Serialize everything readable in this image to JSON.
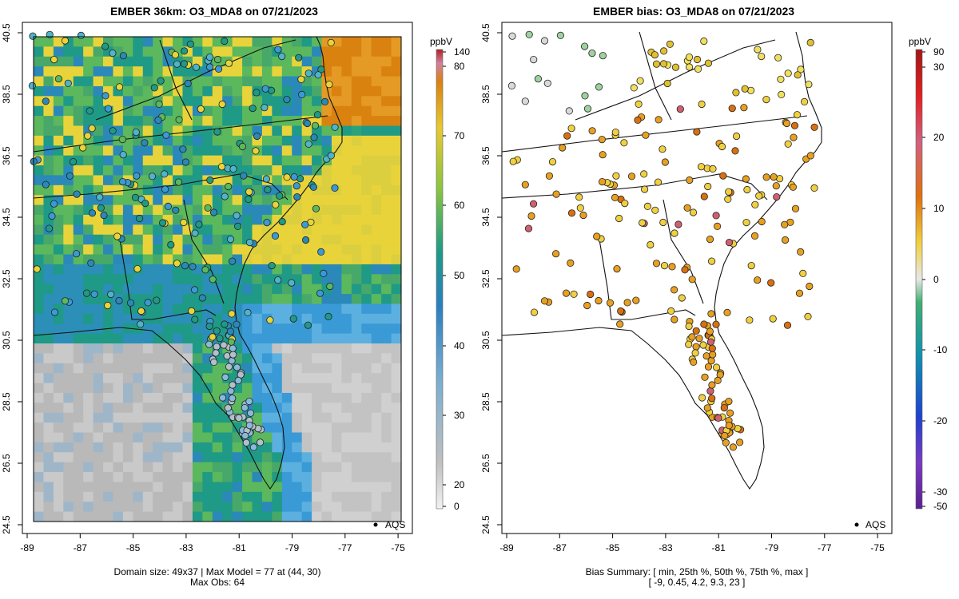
{
  "left_panel": {
    "title": "EMBER 36km: O3_MDA8 on 07/21/2023",
    "footer_line1": "Domain size: 49x37 | Max Model = 77 at (44, 30)",
    "footer_line2": "Max Obs: 64",
    "legend_label": "AQS",
    "colorbar_unit": "ppbV",
    "colorbar_ticks": [
      "0",
      "20",
      "30",
      "40",
      "50",
      "60",
      "70",
      "80",
      "140"
    ]
  },
  "right_panel": {
    "title": "EMBER bias: O3_MDA8 on 07/21/2023",
    "footer_line1": "Bias Summary: [ min, 25th %, 50th %, 75th %, max ]",
    "footer_line2": "[ -9,   0.45,   4.2,   9.3,   23 ]",
    "legend_label": "AQS",
    "colorbar_unit": "ppbV",
    "colorbar_ticks": [
      "-50",
      "-30",
      "-20",
      "-10",
      "0",
      "10",
      "20",
      "30",
      "90"
    ]
  },
  "axes": {
    "x_ticks": [
      "-89",
      "-87",
      "-85",
      "-83",
      "-81",
      "-79",
      "-77",
      "-75"
    ],
    "y_ticks": [
      "24.5",
      "26.5",
      "28.5",
      "30.5",
      "32.5",
      "34.5",
      "36.5",
      "38.5",
      "40.5"
    ]
  },
  "colors": {
    "model_low": "#c8c8c8",
    "model_blue": "#3a9ad6",
    "model_teal": "#1f9a86",
    "model_green": "#5cb85c",
    "model_yellow": "#e8d43a",
    "model_orange": "#d9820f",
    "bias_neutral": "#e0e0e0",
    "bias_positive": "#e0a020",
    "bias_negative": "#3aa870"
  },
  "chart_data": [
    {
      "type": "heatmap",
      "title": "EMBER 36km: O3_MDA8 on 07/21/2023",
      "xlabel": "",
      "ylabel": "",
      "xlim": [
        -89,
        -75
      ],
      "ylim": [
        24.5,
        40.5
      ],
      "colorbar": {
        "label": "ppbV",
        "ticks": [
          0,
          20,
          30,
          40,
          50,
          60,
          70,
          80,
          140
        ]
      },
      "grid": "49x37",
      "max_model": 77,
      "max_model_cell": [
        44,
        30
      ],
      "max_obs": 64,
      "legend": "bottom-right",
      "series": [
        {
          "name": "AQS"
        }
      ]
    },
    {
      "type": "scatter",
      "title": "EMBER bias: O3_MDA8 on 07/21/2023",
      "xlim": [
        -89,
        -75
      ],
      "ylim": [
        24.5,
        40.5
      ],
      "colorbar": {
        "label": "ppbV",
        "ticks": [
          -50,
          -30,
          -20,
          -10,
          0,
          10,
          20,
          30,
          90
        ]
      },
      "bias_summary": {
        "min": -9,
        "p25": 0.45,
        "median": 4.2,
        "p75": 9.3,
        "max": 23
      },
      "legend": "bottom-right",
      "series": [
        {
          "name": "AQS"
        }
      ]
    }
  ]
}
